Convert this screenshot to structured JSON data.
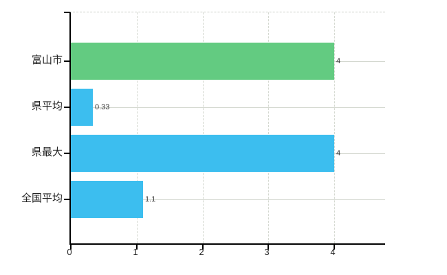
{
  "chart_data": {
    "type": "bar",
    "orientation": "horizontal",
    "categories": [
      "富山市",
      "県平均",
      "県最大",
      "全国平均"
    ],
    "values": [
      4,
      0.33,
      4,
      1.1
    ],
    "value_labels": [
      "4",
      "0.33",
      "4",
      "1.1"
    ],
    "bar_colors": [
      "#63cb81",
      "#3cbeef",
      "#3cbeef",
      "#3cbeef"
    ],
    "x_tick_values": [
      0,
      1,
      2,
      3,
      4
    ],
    "x_tick_labels": [
      "0",
      "1",
      "2",
      "3",
      "4"
    ],
    "xlim": [
      0,
      4.8
    ],
    "grid": "on",
    "legend": "none"
  },
  "colors": {
    "background": "#ffffff",
    "axis": "#000000",
    "gridline": "#d4d8d0",
    "plot_top_border": "#c9cdc5",
    "category_text": "#222222",
    "tick_text": "#222222",
    "value_text": "#333333",
    "bar_green": "#63cb81",
    "bar_blue": "#3cbeef"
  }
}
